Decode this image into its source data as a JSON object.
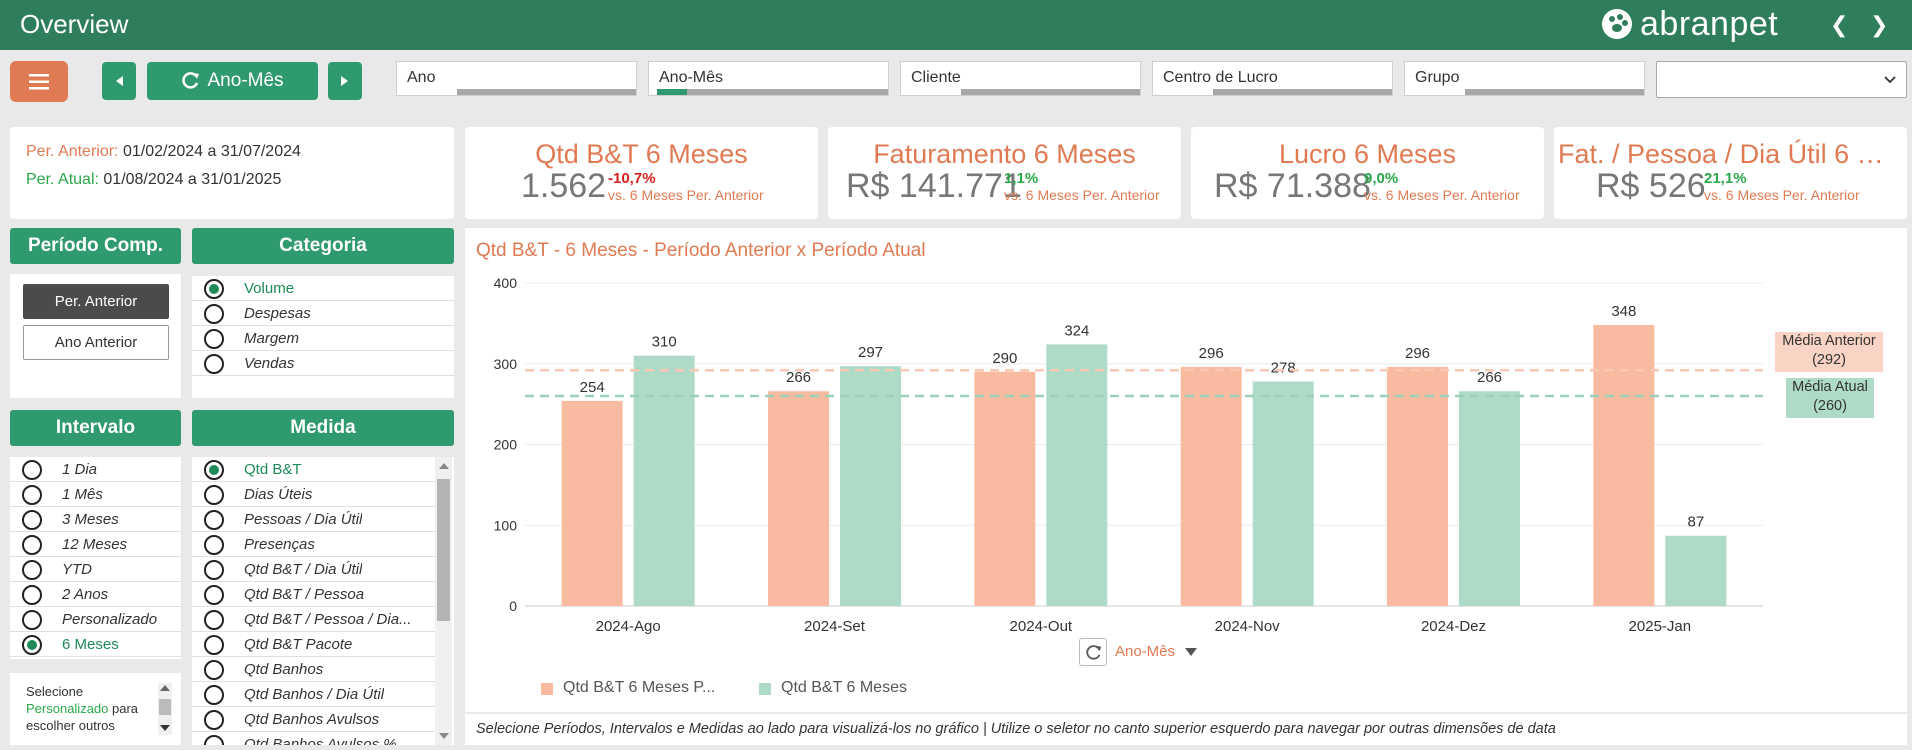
{
  "header": {
    "title": "Overview",
    "logo_text": "abranpet",
    "prev_icon": "chevron-left-icon",
    "next_icon": "chevron-right-icon"
  },
  "toolbar": {
    "menu_icon": "hamburger-icon",
    "period_button": "Ano-Mês",
    "slicers": [
      {
        "label": "Ano"
      },
      {
        "label": "Ano-Mês"
      },
      {
        "label": "Cliente"
      },
      {
        "label": "Centro de Lucro"
      },
      {
        "label": "Grupo"
      }
    ],
    "dropdown_value": ""
  },
  "periods": {
    "prev_label": "Per. Anterior:",
    "prev_value": "01/02/2024 a 31/07/2024",
    "curr_label": "Per. Atual:",
    "curr_value": "01/08/2024 a 31/01/2025"
  },
  "kpis": [
    {
      "title": "Qtd B&T 6 Meses",
      "value": "1.562",
      "delta": "-10,7%",
      "delta_dir": "down",
      "sub": "vs. 6 Meses Per. Anterior"
    },
    {
      "title": "Faturamento 6 Meses",
      "value": "R$ 141.771",
      "delta": "1,1%",
      "delta_dir": "up",
      "sub": "vs. 6 Meses Per. Anterior"
    },
    {
      "title": "Lucro 6 Meses",
      "value": "R$ 71.388",
      "delta": "9,0%",
      "delta_dir": "up",
      "sub": "vs. 6 Meses Per. Anterior"
    },
    {
      "title": "Fat. / Pessoa / Dia Útil 6 Me...",
      "value": "R$ 526",
      "delta": "21,1%",
      "delta_dir": "up",
      "sub": "vs. 6 Meses Per. Anterior"
    }
  ],
  "periodo_comp": {
    "title": "Período Comp.",
    "buttons": [
      "Per. Anterior",
      "Ano Anterior"
    ],
    "selected": 0
  },
  "categoria": {
    "title": "Categoria",
    "items": [
      "Volume",
      "Despesas",
      "Margem",
      "Vendas"
    ],
    "selected": 0
  },
  "intervalo": {
    "title": "Intervalo",
    "items": [
      "1 Dia",
      "1 Mês",
      "3 Meses",
      "12 Meses",
      "YTD",
      "2 Anos",
      "Personalizado",
      "6 Meses"
    ],
    "selected": 7
  },
  "medida": {
    "title": "Medida",
    "items": [
      "Qtd B&T",
      "Dias Úteis",
      "Pessoas / Dia Útil",
      "Presenças",
      "Qtd B&T / Dia Útil",
      "Qtd B&T / Pessoa",
      "Qtd B&T / Pessoa / Dia...",
      "Qtd B&T Pacote",
      "Qtd Banhos",
      "Qtd Banhos / Dia Útil",
      "Qtd Banhos Avulsos",
      "Qtd Banhos Avulsos %"
    ],
    "selected": 0
  },
  "hint": {
    "l1": "Selecione",
    "l2a": "Personalizado",
    "l2b": " para",
    "l3": "escolher outros"
  },
  "chart_data": {
    "type": "bar",
    "title": "Qtd B&T - 6 Meses - Período Anterior x Período Atual",
    "categories": [
      "2024-Ago",
      "2024-Set",
      "2024-Out",
      "2024-Nov",
      "2024-Dez",
      "2025-Jan"
    ],
    "series": [
      {
        "name": "Qtd B&T 6 Meses P...",
        "color": "#f9bba0",
        "values": [
          254,
          266,
          290,
          296,
          296,
          348
        ]
      },
      {
        "name": "Qtd B&T 6 Meses",
        "color": "#aedbc8",
        "values": [
          310,
          297,
          324,
          278,
          266,
          87
        ]
      }
    ],
    "ylim": [
      0,
      400
    ],
    "yticks": [
      0,
      100,
      200,
      300,
      400
    ],
    "reference_lines": [
      {
        "label_l1": "Média Anterior",
        "label_l2": "(292)",
        "value": 292,
        "color": "#f9c7b3",
        "bg": "#f9d3c4"
      },
      {
        "label_l1": "Média Atual",
        "label_l2": "(260)",
        "value": 260,
        "color": "#9bd0bb",
        "bg": "#aedbc8"
      }
    ],
    "grid": true,
    "legend": "bottom-left",
    "axis_selector": "Ano-Mês"
  },
  "footer_note": "Selecione Períodos, Intervalos e Medidas ao lado para visualizá-los no gráfico | Utilize o seletor no canto superior esquerdo para navegar por outras dimensões de data"
}
